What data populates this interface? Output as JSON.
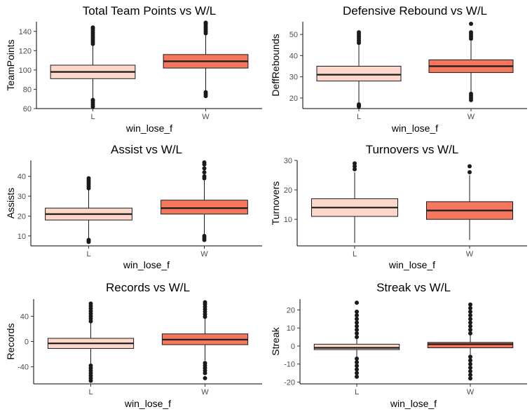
{
  "colors": {
    "L": "#fdd7c9",
    "W": "#f5775e"
  },
  "chart_data": [
    {
      "type": "boxplot",
      "title": "Total Team Points vs W/L",
      "xlabel": "win_lose_f",
      "ylabel": "TeamPoints",
      "categories": [
        "L",
        "W"
      ],
      "ylim": [
        60,
        150
      ],
      "yticks": [
        60,
        80,
        100,
        120,
        140
      ],
      "boxes": [
        {
          "category": "L",
          "lower_whisker": 70,
          "q1": 91,
          "median": 98,
          "q3": 105,
          "upper_whisker": 126,
          "outliers": [
            62,
            64,
            66,
            68,
            69,
            127,
            129,
            131,
            133,
            135,
            137,
            139,
            141,
            143,
            144
          ]
        },
        {
          "category": "W",
          "lower_whisker": 78,
          "q1": 102,
          "median": 109,
          "q3": 116,
          "upper_whisker": 137,
          "outliers": [
            73,
            75,
            77,
            138,
            140,
            142,
            144,
            146,
            148,
            149
          ]
        }
      ]
    },
    {
      "type": "boxplot",
      "title": "Defensive Rebound vs W/L",
      "xlabel": "win_lose_f",
      "ylabel": "DeffRebounds",
      "categories": [
        "L",
        "W"
      ],
      "ylim": [
        15,
        56
      ],
      "yticks": [
        20,
        30,
        40,
        50
      ],
      "boxes": [
        {
          "category": "L",
          "lower_whisker": 18,
          "q1": 28,
          "median": 31,
          "q3": 35,
          "upper_whisker": 45,
          "outliers": [
            16,
            16.5,
            17,
            46,
            47,
            48,
            49,
            50,
            51
          ]
        },
        {
          "category": "W",
          "lower_whisker": 23,
          "q1": 32,
          "median": 35,
          "q3": 38,
          "upper_whisker": 47,
          "outliers": [
            19,
            20,
            21,
            22,
            48,
            49,
            50,
            51,
            55
          ]
        }
      ]
    },
    {
      "type": "boxplot",
      "title": "Assist vs W/L",
      "xlabel": "win_lose_f",
      "ylabel": "Assists",
      "categories": [
        "L",
        "W"
      ],
      "ylim": [
        5,
        48
      ],
      "yticks": [
        10,
        20,
        30,
        40
      ],
      "boxes": [
        {
          "category": "L",
          "lower_whisker": 9,
          "q1": 18,
          "median": 21,
          "q3": 24,
          "upper_whisker": 33,
          "outliers": [
            7,
            7.5,
            8,
            34,
            35,
            36,
            37,
            38,
            39
          ]
        },
        {
          "category": "W",
          "lower_whisker": 11,
          "q1": 21,
          "median": 24,
          "q3": 28,
          "upper_whisker": 38,
          "outliers": [
            8,
            9,
            10,
            39,
            40,
            42,
            44,
            46,
            47
          ]
        }
      ]
    },
    {
      "type": "boxplot",
      "title": "Turnovers vs W/L",
      "xlabel": "win_lose_f",
      "ylabel": "Turnovers",
      "categories": [
        "L",
        "W"
      ],
      "ylim": [
        1,
        30
      ],
      "yticks": [
        10,
        20,
        30
      ],
      "boxes": [
        {
          "category": "L",
          "lower_whisker": 2,
          "q1": 11,
          "median": 14,
          "q3": 17,
          "upper_whisker": 26,
          "outliers": [
            27,
            28,
            29
          ]
        },
        {
          "category": "W",
          "lower_whisker": 3,
          "q1": 10,
          "median": 13,
          "q3": 16,
          "upper_whisker": 25,
          "outliers": [
            26,
            28
          ]
        }
      ]
    },
    {
      "type": "boxplot",
      "title": "Records vs W/L",
      "xlabel": "win_lose_f",
      "ylabel": "Records",
      "categories": [
        "L",
        "W"
      ],
      "ylim": [
        -67,
        67
      ],
      "yticks": [
        -40,
        0,
        40
      ],
      "boxes": [
        {
          "category": "L",
          "lower_whisker": -36,
          "q1": -11,
          "median": -3,
          "q3": 5,
          "upper_whisker": 30,
          "outliers": [
            -62,
            -58,
            -54,
            -50,
            -46,
            -42,
            -38,
            32,
            36,
            40,
            44,
            48,
            52,
            56,
            60
          ]
        },
        {
          "category": "W",
          "lower_whisker": -30,
          "q1": -5,
          "median": 3,
          "q3": 12,
          "upper_whisker": 37,
          "outliers": [
            -58,
            -50,
            -46,
            -42,
            -38,
            -34,
            39,
            43,
            47,
            51,
            55,
            59,
            62
          ]
        }
      ]
    },
    {
      "type": "boxplot",
      "title": "Streak vs W/L",
      "xlabel": "win_lose_f",
      "ylabel": "Streak",
      "categories": [
        "L",
        "W"
      ],
      "ylim": [
        -21,
        26
      ],
      "yticks": [
        -20,
        -10,
        0,
        10,
        20
      ],
      "boxes": [
        {
          "category": "L",
          "lower_whisker": -6,
          "q1": -2,
          "median": -1,
          "q3": 1,
          "upper_whisker": 4,
          "outliers": [
            -17,
            -15,
            -13,
            -11,
            -9,
            -7,
            5,
            7,
            9,
            11,
            13,
            15,
            17,
            19,
            24
          ]
        },
        {
          "category": "W",
          "lower_whisker": -5,
          "q1": -1,
          "median": 1,
          "q3": 2,
          "upper_whisker": 6,
          "outliers": [
            -18,
            -16,
            -14,
            -12,
            -10,
            -8,
            -6,
            7,
            9,
            11,
            13,
            15,
            17,
            19,
            21,
            23
          ]
        }
      ]
    }
  ]
}
